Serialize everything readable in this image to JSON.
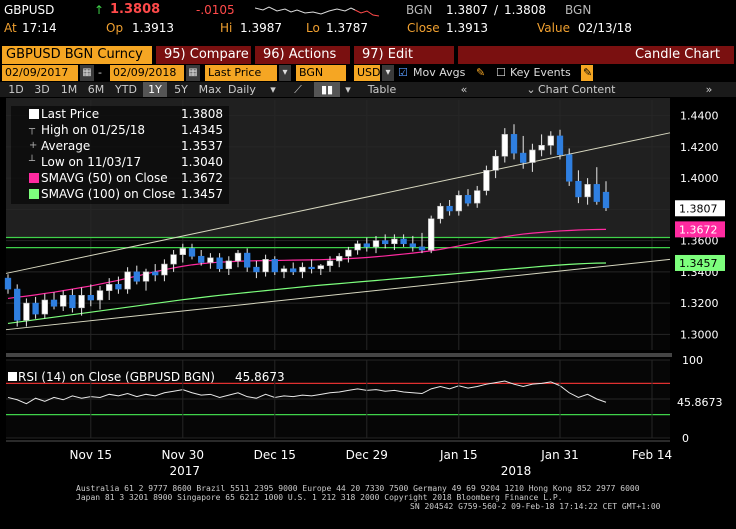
{
  "header": {
    "ticker": "GBPUSD",
    "arrow": "↑",
    "last": "1.3808",
    "change": "-.0105",
    "bid_src": "BGN",
    "bid": "1.3807",
    "ask": "1.3808",
    "ask_src": "BGN",
    "at_label": "At",
    "time": "17:14",
    "op_label": "Op",
    "open": "1.3913",
    "hi_label": "Hi",
    "high": "1.3987",
    "lo_label": "Lo",
    "low": "1.3787",
    "close_label": "Close",
    "close": "1.3913",
    "value_label": "Value",
    "value_date": "02/13/18"
  },
  "toolbar": {
    "title": "GBPUSD BGN Curncy",
    "compare": "95) Compare",
    "actions": "96) Actions",
    "edit": "97) Edit",
    "chart_type": "Candle Chart"
  },
  "fields": {
    "start_date": "02/09/2017",
    "end_date": "02/09/2018",
    "price_field": "Last Price",
    "source": "BGN",
    "currency": "USD",
    "mov_avgs": "Mov Avgs",
    "key_events": "Key Events"
  },
  "periods": [
    "1D",
    "3D",
    "1M",
    "6M",
    "YTD",
    "1Y",
    "5Y",
    "Max"
  ],
  "selected_period": "1Y",
  "frequency": "Daily",
  "table_label": "Table",
  "chart_content_label": "Chart Content",
  "legend": [
    {
      "name": "Last Price",
      "value": "1.3808",
      "color": "#ffffff"
    },
    {
      "name": "High on 01/25/18",
      "value": "1.4345",
      "color": ""
    },
    {
      "name": "Average",
      "value": "1.3537",
      "color": ""
    },
    {
      "name": "Low on 11/03/17",
      "value": "1.3040",
      "color": ""
    },
    {
      "name": "SMAVG (50) on Close",
      "value": "1.3672",
      "color": "#ff2aa0"
    },
    {
      "name": "SMAVG (100) on Close",
      "value": "1.3457",
      "color": "#7dff7d"
    }
  ],
  "rsi_label": "RSI (14) on Close (GBPUSD BGN)",
  "rsi_value": "45.8673",
  "chart_data": {
    "type": "candlestick",
    "y_ticks": [
      1.3,
      1.32,
      1.34,
      1.36,
      1.38,
      1.4,
      1.42,
      1.44
    ],
    "y_tick_labels": [
      "1.3000",
      "1.3200",
      "1.3400",
      "1.3600",
      "1.3800",
      "1.4000",
      "1.4200",
      "1.4400"
    ],
    "ylim": [
      1.29,
      1.45
    ],
    "x_tick_labels": [
      "Nov 15",
      "Nov 30",
      "Dec 15",
      "Dec 29",
      "Jan 15",
      "Jan 31",
      "Feb 14"
    ],
    "x_year_labels": [
      "2017",
      "2018"
    ],
    "x_tick_index": [
      9,
      19,
      29,
      39,
      49,
      60,
      70
    ],
    "year_index": [
      19,
      55
    ],
    "price_labels": [
      {
        "value": "1.3807",
        "level": 1.3807,
        "color": "#ffffff",
        "text_color": "#000000"
      },
      {
        "value": "1.3672",
        "level": 1.3672,
        "color": "#ff2aa0",
        "text_color": "#ffffff"
      },
      {
        "value": "1.3457",
        "level": 1.3457,
        "color": "#7dff7d",
        "text_color": "#000000"
      }
    ],
    "high_line": 1.362,
    "low_line": 1.3555,
    "candles": [
      [
        1.336,
        1.3385,
        1.326,
        1.329
      ],
      [
        1.329,
        1.332,
        1.305,
        1.309
      ],
      [
        1.309,
        1.323,
        1.305,
        1.32
      ],
      [
        1.32,
        1.324,
        1.31,
        1.313
      ],
      [
        1.313,
        1.326,
        1.31,
        1.322
      ],
      [
        1.322,
        1.327,
        1.316,
        1.318
      ],
      [
        1.318,
        1.328,
        1.315,
        1.325
      ],
      [
        1.325,
        1.329,
        1.314,
        1.317
      ],
      [
        1.317,
        1.33,
        1.312,
        1.325
      ],
      [
        1.325,
        1.332,
        1.318,
        1.322
      ],
      [
        1.322,
        1.331,
        1.316,
        1.328
      ],
      [
        1.328,
        1.336,
        1.322,
        1.332
      ],
      [
        1.332,
        1.337,
        1.326,
        1.329
      ],
      [
        1.329,
        1.343,
        1.326,
        1.34
      ],
      [
        1.34,
        1.344,
        1.332,
        1.334
      ],
      [
        1.334,
        1.342,
        1.328,
        1.34
      ],
      [
        1.34,
        1.345,
        1.334,
        1.338
      ],
      [
        1.338,
        1.348,
        1.334,
        1.345
      ],
      [
        1.345,
        1.354,
        1.34,
        1.351
      ],
      [
        1.351,
        1.358,
        1.346,
        1.355
      ],
      [
        1.355,
        1.358,
        1.348,
        1.35
      ],
      [
        1.35,
        1.354,
        1.344,
        1.346
      ],
      [
        1.346,
        1.352,
        1.342,
        1.349
      ],
      [
        1.349,
        1.352,
        1.34,
        1.342
      ],
      [
        1.342,
        1.35,
        1.338,
        1.347
      ],
      [
        1.347,
        1.354,
        1.343,
        1.352
      ],
      [
        1.352,
        1.355,
        1.34,
        1.343
      ],
      [
        1.343,
        1.347,
        1.336,
        1.34
      ],
      [
        1.34,
        1.351,
        1.337,
        1.348
      ],
      [
        1.348,
        1.35,
        1.338,
        1.34
      ],
      [
        1.34,
        1.344,
        1.336,
        1.342
      ],
      [
        1.342,
        1.346,
        1.338,
        1.34
      ],
      [
        1.34,
        1.346,
        1.336,
        1.343
      ],
      [
        1.343,
        1.348,
        1.339,
        1.342
      ],
      [
        1.342,
        1.345,
        1.338,
        1.344
      ],
      [
        1.344,
        1.35,
        1.34,
        1.347
      ],
      [
        1.347,
        1.352,
        1.343,
        1.35
      ],
      [
        1.35,
        1.356,
        1.346,
        1.354
      ],
      [
        1.354,
        1.36,
        1.351,
        1.358
      ],
      [
        1.358,
        1.362,
        1.353,
        1.356
      ],
      [
        1.356,
        1.363,
        1.352,
        1.36
      ],
      [
        1.36,
        1.364,
        1.355,
        1.358
      ],
      [
        1.358,
        1.364,
        1.354,
        1.361
      ],
      [
        1.361,
        1.364,
        1.356,
        1.358
      ],
      [
        1.358,
        1.363,
        1.353,
        1.356
      ],
      [
        1.356,
        1.365,
        1.352,
        1.354
      ],
      [
        1.354,
        1.376,
        1.352,
        1.374
      ],
      [
        1.374,
        1.384,
        1.371,
        1.382
      ],
      [
        1.382,
        1.386,
        1.376,
        1.379
      ],
      [
        1.379,
        1.392,
        1.376,
        1.389
      ],
      [
        1.389,
        1.393,
        1.382,
        1.384
      ],
      [
        1.384,
        1.395,
        1.381,
        1.392
      ],
      [
        1.392,
        1.408,
        1.389,
        1.405
      ],
      [
        1.405,
        1.418,
        1.4,
        1.414
      ],
      [
        1.414,
        1.432,
        1.41,
        1.428
      ],
      [
        1.428,
        1.4345,
        1.412,
        1.416
      ],
      [
        1.416,
        1.427,
        1.406,
        1.41
      ],
      [
        1.41,
        1.422,
        1.404,
        1.418
      ],
      [
        1.418,
        1.428,
        1.414,
        1.421
      ],
      [
        1.421,
        1.43,
        1.415,
        1.427
      ],
      [
        1.427,
        1.431,
        1.412,
        1.415
      ],
      [
        1.415,
        1.419,
        1.395,
        1.398
      ],
      [
        1.398,
        1.405,
        1.384,
        1.388
      ],
      [
        1.388,
        1.4,
        1.383,
        1.396
      ],
      [
        1.396,
        1.407,
        1.383,
        1.385
      ],
      [
        1.391,
        1.398,
        1.379,
        1.381
      ]
    ],
    "sma50": [
      1.323,
      1.3238,
      1.3245,
      1.3253,
      1.3262,
      1.327,
      1.328,
      1.329,
      1.33,
      1.331,
      1.3322,
      1.3334,
      1.3346,
      1.336,
      1.3373,
      1.3387,
      1.3401,
      1.3414,
      1.3425,
      1.3436,
      1.3445,
      1.3452,
      1.3458,
      1.3462,
      1.3465,
      1.3468,
      1.347,
      1.3471,
      1.3472,
      1.3473,
      1.3474,
      1.3475,
      1.3476,
      1.3477,
      1.3478,
      1.348,
      1.3482,
      1.3485,
      1.3488,
      1.3492,
      1.3497,
      1.3502,
      1.3508,
      1.3514,
      1.352,
      1.3527,
      1.3535,
      1.3544,
      1.3555,
      1.3566,
      1.3578,
      1.359,
      1.3602,
      1.3614,
      1.3625,
      1.3634,
      1.3642,
      1.3648,
      1.3653,
      1.3658,
      1.3662,
      1.3665,
      1.3668,
      1.367,
      1.3671,
      1.3672
    ],
    "sma100": [
      1.307,
      1.3078,
      1.3086,
      1.3094,
      1.3102,
      1.311,
      1.3118,
      1.3126,
      1.3134,
      1.3142,
      1.315,
      1.3158,
      1.3166,
      1.3174,
      1.3182,
      1.319,
      1.3198,
      1.3206,
      1.3214,
      1.3222,
      1.3229,
      1.3236,
      1.3243,
      1.325,
      1.3256,
      1.3262,
      1.3268,
      1.3274,
      1.328,
      1.3286,
      1.3292,
      1.3298,
      1.3304,
      1.331,
      1.3315,
      1.332,
      1.3325,
      1.333,
      1.3335,
      1.334,
      1.3345,
      1.335,
      1.3355,
      1.336,
      1.3365,
      1.337,
      1.3375,
      1.338,
      1.3385,
      1.339,
      1.3395,
      1.34,
      1.3405,
      1.341,
      1.3415,
      1.342,
      1.3425,
      1.343,
      1.3435,
      1.344,
      1.3444,
      1.3448,
      1.3451,
      1.3454,
      1.3456,
      1.3457
    ],
    "trend_upper": [
      1.339,
      1.429
    ],
    "trend_lower": [
      1.303,
      1.348
    ],
    "rsi": {
      "ylim": [
        0,
        100
      ],
      "y_ticks": [
        0,
        50,
        100
      ],
      "levels": [
        70,
        30
      ],
      "values": [
        52,
        49,
        44,
        51,
        47,
        52,
        49,
        54,
        51,
        53,
        52,
        56,
        54,
        57,
        53,
        56,
        54,
        58,
        60,
        62,
        58,
        55,
        56,
        52,
        55,
        58,
        53,
        51,
        56,
        52,
        54,
        53,
        55,
        54,
        56,
        58,
        59,
        61,
        63,
        61,
        62,
        60,
        61,
        59,
        58,
        57,
        63,
        66,
        63,
        67,
        64,
        66,
        69,
        71,
        73,
        69,
        66,
        69,
        70,
        72,
        67,
        58,
        52,
        56,
        50,
        45.8673
      ]
    }
  },
  "footer": {
    "line1": "Australia 61 2 9777 8600 Brazil 5511 2395 9000 Europe 44 20 7330 7500 Germany 49 69 9204 1210 Hong Kong 852 2977 6000",
    "line2": "Japan 81 3 3201 8900      Singapore 65 6212 1000      U.S. 1 212 318 2000      Copyright 2018 Bloomberg Finance L.P.",
    "line3": "SN 204542 G759-560-2 09-Feb-18 17:14:22 CET  GMT+1:00"
  }
}
